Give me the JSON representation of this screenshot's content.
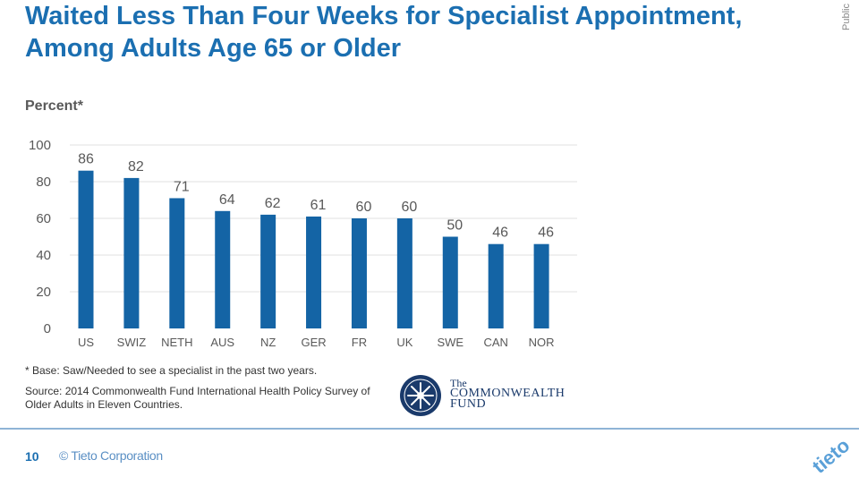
{
  "title": "Waited Less Than Four Weeks for Specialist Appointment, Among Adults Age 65 or Older",
  "classification": "Public",
  "chart_data": {
    "type": "bar",
    "ylabel": "Percent*",
    "ylim": [
      0,
      100
    ],
    "yticks": [
      0,
      20,
      40,
      60,
      80,
      100
    ],
    "categories": [
      "US",
      "SWIZ",
      "NETH",
      "AUS",
      "NZ",
      "GER",
      "FR",
      "UK",
      "SWE",
      "CAN",
      "NOR"
    ],
    "values": [
      86,
      82,
      71,
      64,
      62,
      61,
      60,
      60,
      50,
      46,
      46
    ],
    "bar_color": "#1464a5",
    "grid": true
  },
  "note": "* Base: Saw/Needed to see a specialist in the past two years.",
  "source": "Source: 2014 Commonwealth Fund International Health Policy Survey of Older Adults in Eleven Countries.",
  "logo": {
    "line1": "The",
    "line2": "COMMONWEALTH",
    "line3": "FUND"
  },
  "footer": {
    "page": "10",
    "copyright": "© Tieto Corporation",
    "brand": "tieto"
  }
}
